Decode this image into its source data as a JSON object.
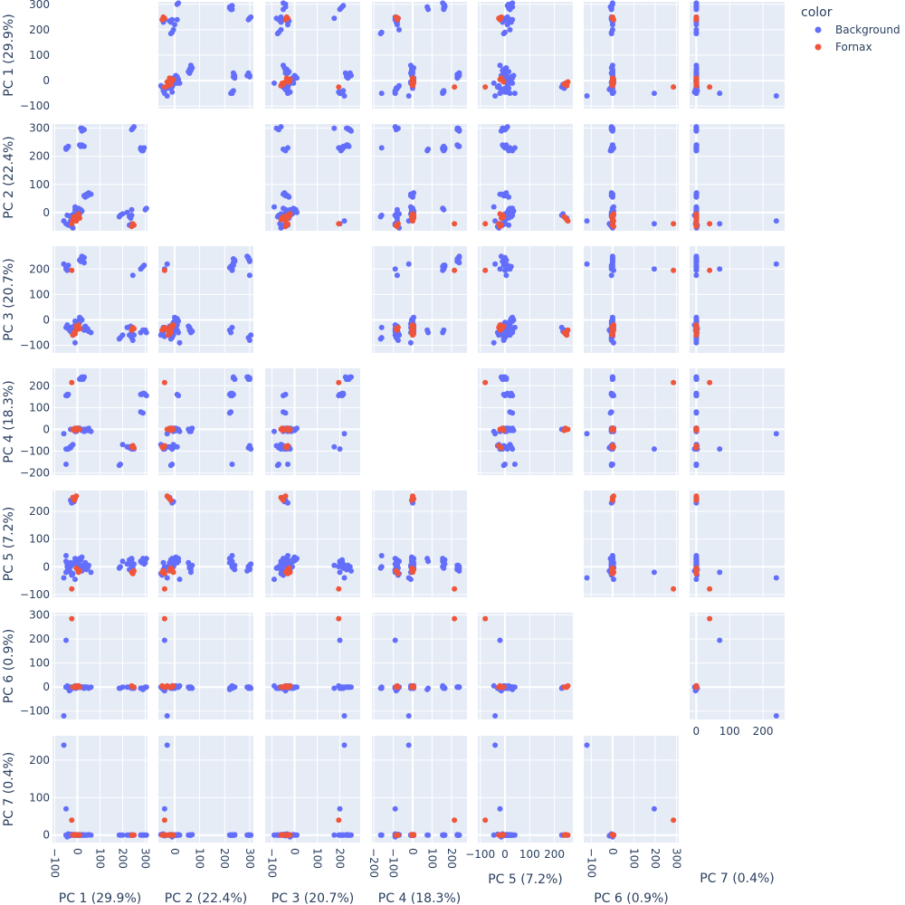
{
  "legend": {
    "title": "color",
    "items": [
      {
        "label": "Background",
        "color": "#636efa"
      },
      {
        "label": "Fornax",
        "color": "#ef553b"
      }
    ]
  },
  "chart_data": {
    "type": "scatter",
    "variant": "scatter-matrix",
    "diagonal_visible": false,
    "grid": true,
    "legend_placement": "top-right",
    "dimensions": [
      {
        "label": "PC 1 (29.9%)",
        "range": [
          -110,
          310
        ],
        "ticks": [
          -100,
          0,
          100,
          200,
          300
        ]
      },
      {
        "label": "PC 2 (22.4%)",
        "range": [
          -65,
          315
        ],
        "ticks": [
          0,
          100,
          200,
          300
        ]
      },
      {
        "label": "PC 3 (20.7%)",
        "range": [
          -130,
          290
        ],
        "ticks": [
          -100,
          0,
          100,
          200
        ]
      },
      {
        "label": "PC 4 (18.3%)",
        "range": [
          -210,
          280
        ],
        "ticks": [
          -200,
          -100,
          0,
          100,
          200
        ]
      },
      {
        "label": "PC 5 (7.2%)",
        "range": [
          -110,
          275
        ],
        "ticks": [
          -100,
          0,
          100,
          200
        ]
      },
      {
        "label": "PC 6 (0.9%)",
        "range": [
          -135,
          310
        ],
        "ticks": [
          -100,
          0,
          100,
          200,
          300
        ]
      },
      {
        "label": "PC 7 (0.4%)",
        "range": [
          -20,
          265
        ],
        "ticks": [
          0,
          100,
          200
        ]
      }
    ],
    "series": [
      {
        "name": "Background",
        "color": "#636efa",
        "points": [
          [
            -30,
            -45,
            -45,
            -80,
            -20,
            -10,
            0
          ],
          [
            -25,
            -50,
            -50,
            -75,
            -30,
            -5,
            2
          ],
          [
            -35,
            -40,
            -40,
            -85,
            -15,
            -15,
            -2
          ],
          [
            -20,
            -55,
            -60,
            -70,
            -25,
            0,
            1
          ],
          [
            -40,
            -45,
            -35,
            -90,
            -10,
            -5,
            3
          ],
          [
            -30,
            -45,
            -30,
            -85,
            15,
            -5,
            0
          ],
          [
            -10,
            10,
            -20,
            -5,
            20,
            0,
            0
          ],
          [
            0,
            5,
            -30,
            5,
            15,
            5,
            0
          ],
          [
            5,
            15,
            -5,
            0,
            20,
            0,
            1
          ],
          [
            10,
            0,
            10,
            5,
            30,
            0,
            0
          ],
          [
            -5,
            -5,
            -15,
            -10,
            5,
            -5,
            0
          ],
          [
            15,
            10,
            5,
            0,
            25,
            0,
            0
          ],
          [
            -15,
            -10,
            -25,
            0,
            10,
            0,
            1
          ],
          [
            20,
            5,
            0,
            -5,
            35,
            0,
            0
          ],
          [
            0,
            -15,
            -35,
            5,
            -10,
            0,
            -1
          ],
          [
            10,
            -5,
            -10,
            0,
            0,
            0,
            0
          ],
          [
            -10,
            0,
            -5,
            -5,
            30,
            -5,
            0
          ],
          [
            5,
            -10,
            -20,
            5,
            -5,
            5,
            0
          ],
          [
            30,
            60,
            -30,
            -10,
            0,
            -5,
            0
          ],
          [
            40,
            65,
            -40,
            -5,
            -10,
            0,
            0
          ],
          [
            50,
            70,
            -45,
            5,
            5,
            -5,
            1
          ],
          [
            35,
            55,
            -25,
            0,
            15,
            0,
            0
          ],
          [
            60,
            65,
            -50,
            -10,
            -20,
            0,
            0
          ],
          [
            45,
            60,
            -35,
            -5,
            -5,
            0,
            0
          ],
          [
            -45,
            230,
            200,
            160,
            10,
            0,
            0
          ],
          [
            -50,
            225,
            210,
            155,
            20,
            0,
            0
          ],
          [
            -40,
            235,
            215,
            160,
            -5,
            0,
            0
          ],
          [
            -45,
            230,
            195,
            155,
            0,
            5,
            0
          ],
          [
            20,
            240,
            230,
            230,
            -10,
            0,
            1
          ],
          [
            15,
            235,
            240,
            235,
            0,
            0,
            0
          ],
          [
            30,
            235,
            225,
            240,
            -5,
            0,
            0
          ],
          [
            10,
            240,
            235,
            230,
            5,
            0,
            0
          ],
          [
            20,
            290,
            250,
            240,
            -15,
            0,
            0
          ],
          [
            25,
            295,
            240,
            230,
            -5,
            0,
            0
          ],
          [
            20,
            300,
            235,
            235,
            5,
            0,
            0
          ],
          [
            30,
            295,
            245,
            240,
            0,
            0,
            0
          ],
          [
            15,
            300,
            230,
            230,
            -10,
            0,
            0
          ],
          [
            280,
            230,
            200,
            160,
            20,
            -5,
            0
          ],
          [
            290,
            225,
            210,
            165,
            25,
            -5,
            0
          ],
          [
            285,
            220,
            205,
            160,
            15,
            -5,
            0
          ],
          [
            295,
            230,
            215,
            165,
            10,
            -5,
            0
          ],
          [
            280,
            225,
            -50,
            80,
            20,
            -5,
            0
          ],
          [
            290,
            220,
            -40,
            75,
            30,
            -10,
            0
          ],
          [
            245,
            300,
            175,
            -80,
            5,
            -5,
            0
          ],
          [
            240,
            295,
            -70,
            -85,
            0,
            -5,
            0
          ],
          [
            250,
            305,
            -60,
            -90,
            10,
            -5,
            0
          ],
          [
            245,
            300,
            -80,
            -75,
            -5,
            -5,
            0
          ],
          [
            230,
            -15,
            -30,
            -85,
            25,
            0,
            0
          ],
          [
            240,
            -10,
            -45,
            -90,
            30,
            0,
            0
          ],
          [
            235,
            -20,
            -25,
            -80,
            15,
            0,
            0
          ],
          [
            190,
            -10,
            -70,
            -160,
            0,
            -5,
            0
          ],
          [
            185,
            -15,
            -75,
            -165,
            -5,
            -5,
            0
          ],
          [
            220,
            0,
            -30,
            -80,
            10,
            0,
            0
          ],
          [
            200,
            -5,
            -60,
            -70,
            20,
            0,
            0
          ],
          [
            230,
            -45,
            -60,
            -80,
            -10,
            0,
            0
          ],
          [
            240,
            -40,
            -65,
            -85,
            0,
            0,
            0
          ],
          [
            -10,
            20,
            -90,
            -10,
            -45,
            5,
            0
          ],
          [
            -50,
            230,
            -30,
            -160,
            40,
            0,
            0
          ],
          [
            -45,
            -10,
            -20,
            -90,
            -15,
            0,
            -5
          ],
          [
            240,
            10,
            -40,
            -80,
            25,
            0,
            0
          ],
          [
            300,
            10,
            -40,
            160,
            15,
            0,
            0
          ],
          [
            305,
            15,
            -50,
            155,
            30,
            0,
            0
          ],
          [
            30,
            60,
            -40,
            0,
            5,
            -5,
            0
          ],
          [
            -25,
            -10,
            -30,
            0,
            230,
            -5,
            0
          ],
          [
            -30,
            -15,
            -40,
            0,
            240,
            0,
            0
          ],
          [
            -20,
            -20,
            -50,
            0,
            250,
            0,
            0
          ],
          [
            -15,
            -5,
            -45,
            0,
            235,
            0,
            0
          ],
          [
            -60,
            -30,
            220,
            -20,
            -40,
            -120,
            240
          ],
          [
            -50,
            -40,
            200,
            -90,
            -20,
            195,
            70
          ],
          [
            -30,
            -30,
            -40,
            -80,
            0,
            0,
            0
          ]
        ]
      },
      {
        "name": "Fornax",
        "color": "#ef553b",
        "points": [
          [
            -20,
            -25,
            -60,
            0,
            250,
            0,
            0
          ],
          [
            -10,
            -20,
            -55,
            5,
            245,
            0,
            1
          ],
          [
            -15,
            -15,
            -50,
            -5,
            240,
            0,
            0
          ],
          [
            -5,
            -30,
            -40,
            0,
            255,
            5,
            0
          ],
          [
            0,
            -10,
            -30,
            5,
            -10,
            0,
            0
          ],
          [
            5,
            -5,
            -20,
            0,
            -20,
            5,
            0
          ],
          [
            -5,
            -15,
            -25,
            -5,
            -5,
            0,
            1
          ],
          [
            10,
            -20,
            -35,
            0,
            -15,
            0,
            0
          ],
          [
            240,
            -50,
            -40,
            -80,
            -20,
            5,
            0
          ],
          [
            250,
            -45,
            -35,
            -85,
            -15,
            0,
            0
          ],
          [
            245,
            -40,
            -30,
            -75,
            -25,
            0,
            0
          ],
          [
            -25,
            -40,
            195,
            215,
            -80,
            285,
            40
          ]
        ]
      }
    ]
  }
}
